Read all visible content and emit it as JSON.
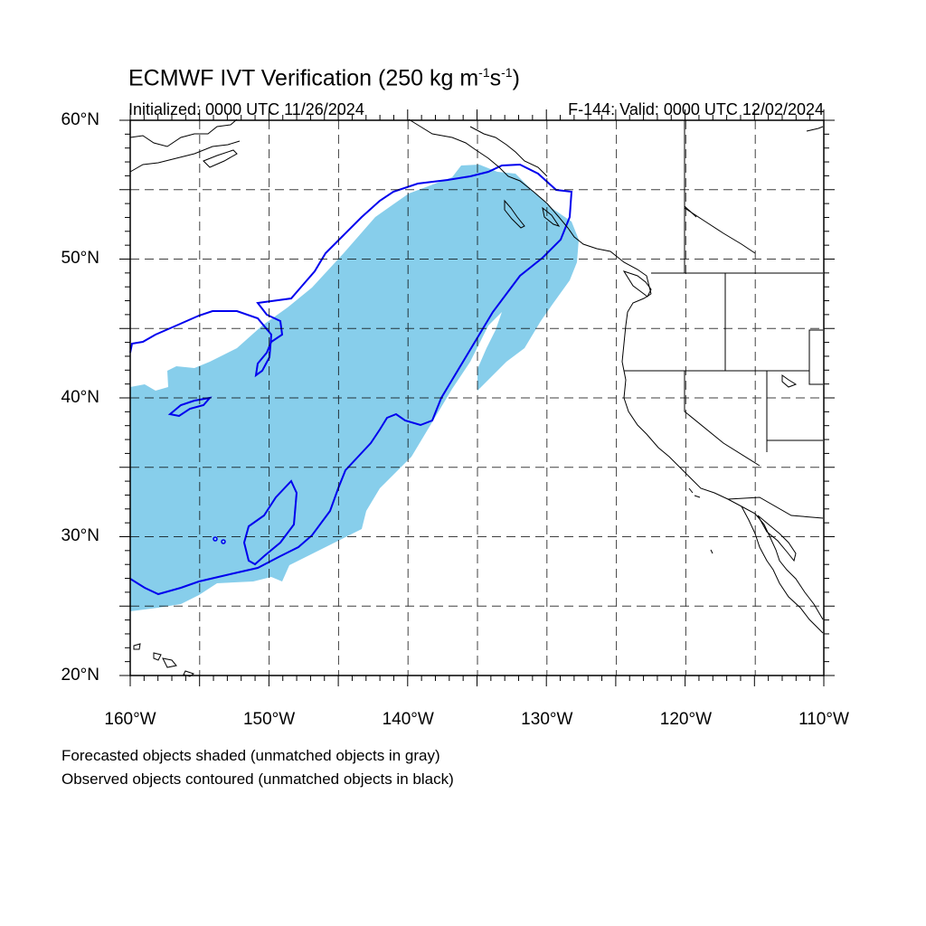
{
  "title": {
    "main": "ECMWF IVT Verification (250 kg m",
    "sup1": "-1",
    "mid": "s",
    "sup2": "-1",
    "end": ")"
  },
  "initialized": "Initialized: 0000 UTC 11/26/2024",
  "valid": "F-144: Valid: 0000 UTC 12/02/2024",
  "lat_labels": [
    "60°N",
    "50°N",
    "40°N",
    "30°N",
    "20°N"
  ],
  "lon_labels": [
    "160°W",
    "150°W",
    "140°W",
    "130°W",
    "120°W",
    "110°W"
  ],
  "notes": [
    "Forecasted objects shaded (unmatched objects in gray)",
    "Observed objects contoured (unmatched objects in black)"
  ],
  "colors": {
    "forecast_fill": "#87ceeb",
    "observed_contour": "#0000ee",
    "coastline": "#000000",
    "grid": "#000000"
  },
  "map_extent": {
    "lon": [
      -160,
      -110
    ],
    "lat": [
      20,
      60
    ]
  }
}
